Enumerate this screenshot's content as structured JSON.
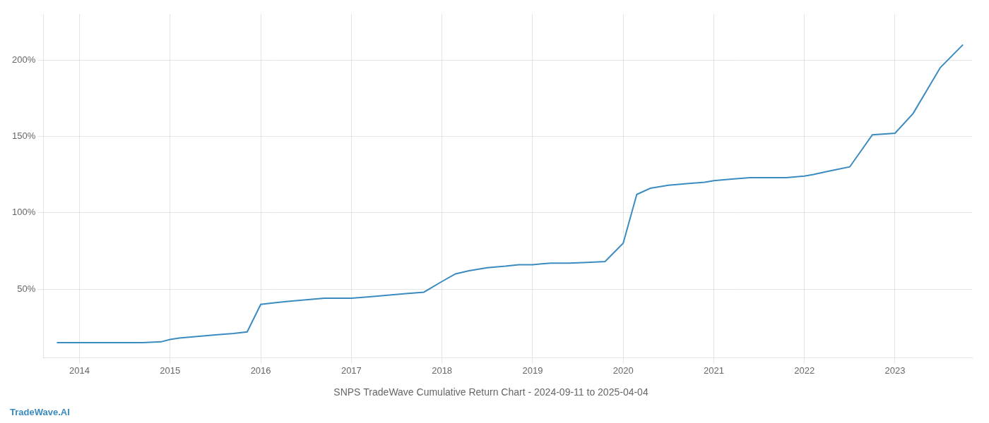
{
  "chart_data": {
    "type": "line",
    "title": "SNPS TradeWave Cumulative Return Chart - 2024-09-11 to 2025-04-04",
    "annotations": [
      {
        "text": "TradeWave.AI",
        "color": "#3a8bbf"
      }
    ],
    "color": "#3a8bbf",
    "x": [
      2013.75,
      2013.9,
      2014.0,
      2014.2,
      2014.5,
      2014.7,
      2014.9,
      2015.0,
      2015.1,
      2015.3,
      2015.5,
      2015.7,
      2015.85,
      2016.0,
      2016.15,
      2016.3,
      2016.5,
      2016.7,
      2016.9,
      2017.0,
      2017.2,
      2017.4,
      2017.6,
      2017.8,
      2018.0,
      2018.15,
      2018.3,
      2018.5,
      2018.7,
      2018.85,
      2019.0,
      2019.1,
      2019.2,
      2019.4,
      2019.6,
      2019.8,
      2020.0,
      2020.15,
      2020.3,
      2020.5,
      2020.7,
      2020.9,
      2021.0,
      2021.2,
      2021.4,
      2021.6,
      2021.8,
      2022.0,
      2022.1,
      2022.25,
      2022.5,
      2022.75,
      2023.0,
      2023.2,
      2023.5,
      2023.75
    ],
    "values": [
      15,
      15,
      15,
      15,
      15,
      15,
      15.5,
      17,
      18,
      19,
      20,
      21,
      22,
      40,
      41,
      42,
      43,
      44,
      44,
      44,
      45,
      46,
      47,
      48,
      55,
      60,
      62,
      64,
      65,
      66,
      66,
      66.5,
      67,
      67,
      67.5,
      68,
      80,
      112,
      116,
      118,
      119,
      120,
      121,
      122,
      123,
      123,
      123,
      124,
      125,
      127,
      130,
      151,
      152,
      165,
      195,
      210
    ],
    "xlim": [
      2013.6,
      2023.85
    ],
    "xticks": [
      2014,
      2015,
      2016,
      2017,
      2018,
      2019,
      2020,
      2021,
      2022,
      2023
    ],
    "ylim": [
      5,
      230
    ],
    "yticks": [
      {
        "value": 50,
        "label": "50%"
      },
      {
        "value": 100,
        "label": "100%"
      },
      {
        "value": 150,
        "label": "150%"
      },
      {
        "value": 200,
        "label": "200%"
      }
    ],
    "grid": true
  }
}
